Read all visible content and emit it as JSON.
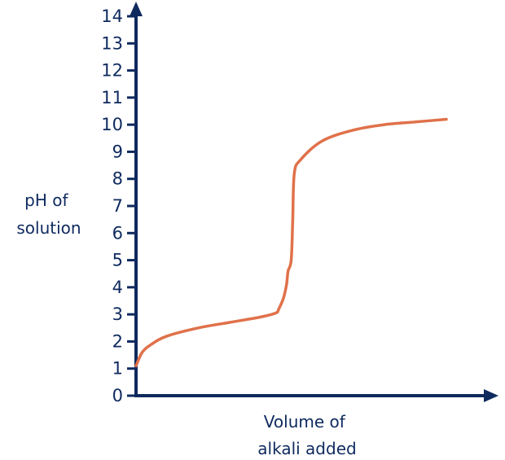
{
  "chart_data": {
    "type": "line",
    "ylabel_lines": [
      "pH of",
      "solution"
    ],
    "xlabel_lines": [
      "Volume of",
      "alkali added"
    ],
    "y_ticks": [
      0,
      1,
      2,
      3,
      4,
      5,
      6,
      7,
      8,
      9,
      10,
      11,
      12,
      13,
      14
    ],
    "y_tick_labels": [
      "0",
      "1",
      "2",
      "3",
      "4",
      "5",
      "6",
      "7",
      "8",
      "9",
      "10",
      "11",
      "12",
      "13",
      "14"
    ],
    "ylim": [
      0,
      14
    ],
    "xlim": [
      0,
      1
    ],
    "x_ticks": false,
    "grid": false,
    "series": [
      {
        "x": [
          0.0,
          0.02,
          0.05,
          0.1,
          0.2,
          0.3,
          0.4,
          0.45,
          0.46,
          0.475,
          0.485,
          0.49,
          0.5,
          0.505,
          0.51,
          0.53,
          0.6,
          0.7,
          0.8,
          0.9,
          1.0
        ],
        "y": [
          1.1,
          1.6,
          1.9,
          2.2,
          2.5,
          2.7,
          2.9,
          3.05,
          3.2,
          3.6,
          4.1,
          4.6,
          5.0,
          6.5,
          8.2,
          8.7,
          9.4,
          9.8,
          10.0,
          10.1,
          10.2
        ]
      }
    ],
    "colors": {
      "axis": "#0e2a5e",
      "curve": "#e0714a"
    }
  }
}
